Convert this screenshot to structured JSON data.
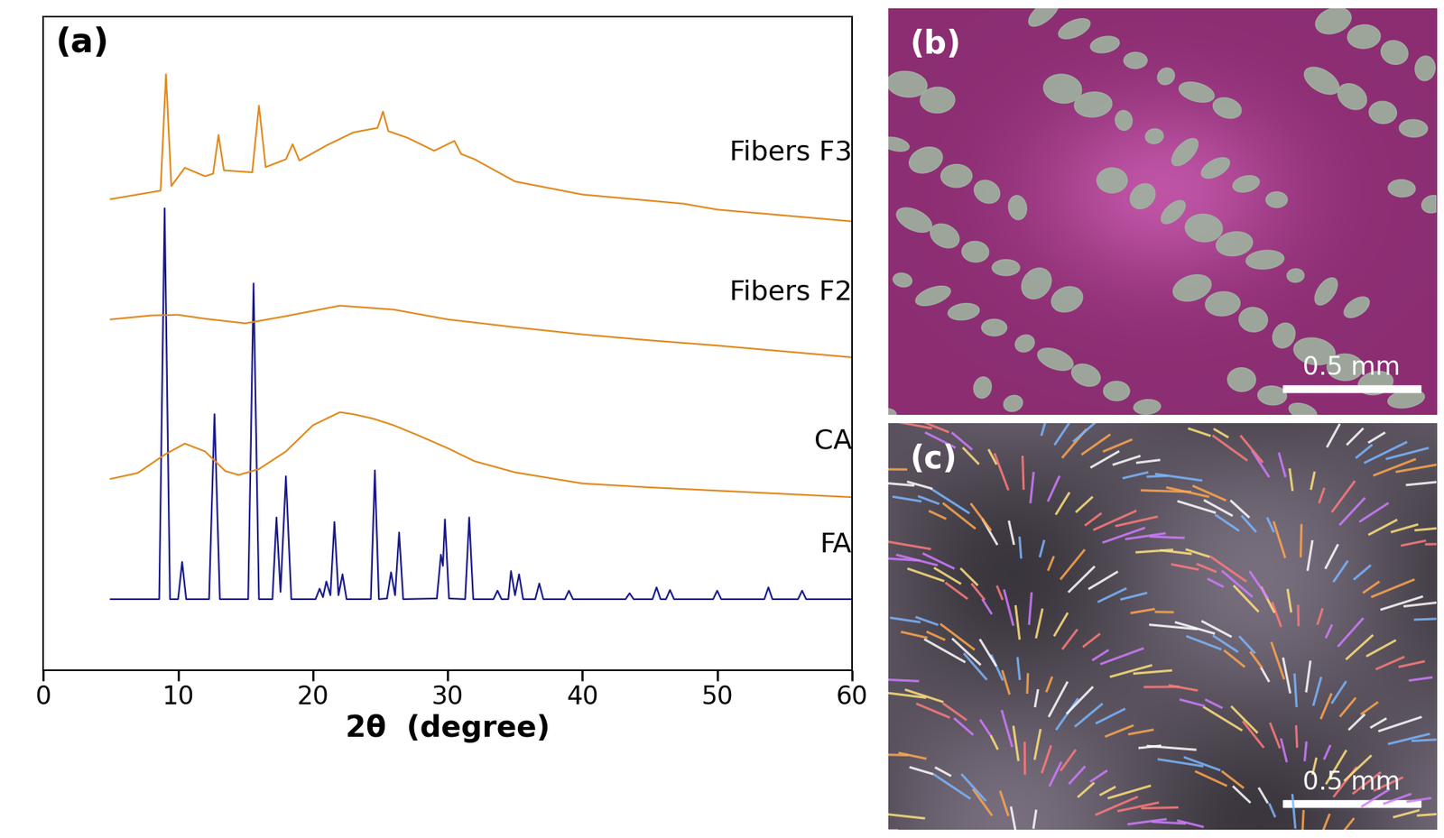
{
  "chart_data": {
    "type": "line",
    "title": "(a)",
    "x_label": "2θ  (degree)",
    "xlim": [
      0,
      60
    ],
    "xticks": [
      0,
      10,
      20,
      30,
      40,
      50,
      60
    ],
    "ylim": [
      0,
      100
    ],
    "tick_labels": "x",
    "series": [
      {
        "name": "FA",
        "color": "#1a1a8c",
        "x": [
          5,
          8.6,
          9.0,
          9.4,
          10.0,
          10.3,
          10.6,
          12.3,
          12.7,
          13.1,
          15.2,
          15.6,
          16.0,
          17.0,
          17.3,
          17.6,
          18.0,
          18.4,
          20.2,
          20.5,
          20.75,
          21.0,
          21.3,
          21.6,
          21.9,
          22.2,
          22.5,
          24.3,
          24.6,
          24.9,
          25.5,
          25.8,
          26.1,
          26.4,
          26.7,
          29.2,
          29.5,
          29.65,
          29.8,
          30.1,
          31.3,
          31.6,
          31.9,
          33.4,
          33.7,
          34.0,
          34.5,
          34.7,
          35.0,
          35.3,
          35.6,
          36.5,
          36.8,
          37.1,
          38.7,
          39.0,
          39.3,
          43.2,
          43.5,
          43.8,
          45.2,
          45.5,
          45.8,
          46.2,
          46.5,
          46.8,
          49.7,
          50.0,
          50.3,
          53.5,
          53.8,
          54.1,
          56.0,
          56.3,
          56.6,
          60
        ],
        "values": [
          10.9,
          10.9,
          70.7,
          10.9,
          10.9,
          16.6,
          10.9,
          10.9,
          39.2,
          10.9,
          10.9,
          59.2,
          10.9,
          10.9,
          23.4,
          12.0,
          29.7,
          10.9,
          10.9,
          12.5,
          11.2,
          13.6,
          11.5,
          22.7,
          11.5,
          14.7,
          10.9,
          10.9,
          30.6,
          10.9,
          11.0,
          15.0,
          11.5,
          21.1,
          10.9,
          11.0,
          17.7,
          16.0,
          23.1,
          11.0,
          10.9,
          23.4,
          10.9,
          10.9,
          12.2,
          10.9,
          10.9,
          15.2,
          11.5,
          14.7,
          10.9,
          10.9,
          13.3,
          10.9,
          10.9,
          12.2,
          10.9,
          10.9,
          11.8,
          10.9,
          10.9,
          12.7,
          10.9,
          10.9,
          12.3,
          10.9,
          10.9,
          12.2,
          10.9,
          10.9,
          12.7,
          10.9,
          10.9,
          12.2,
          10.9,
          10.9
        ]
      },
      {
        "name": "CA",
        "color": "#e08a1e",
        "x": [
          5,
          7,
          9,
          10.5,
          12,
          13.5,
          14.5,
          16,
          18,
          20,
          22,
          23,
          24.5,
          26,
          28,
          30,
          32,
          35,
          40,
          45,
          50,
          55,
          60
        ],
        "values": [
          29.3,
          30.2,
          33.0,
          34.7,
          33.5,
          30.5,
          29.9,
          30.8,
          33.5,
          37.5,
          39.5,
          39.2,
          38.5,
          37.5,
          35.8,
          34.0,
          32.0,
          30.3,
          28.6,
          28.0,
          27.5,
          27.0,
          26.5
        ]
      },
      {
        "name": "Fibers F2",
        "color": "#e08a1e",
        "x": [
          5,
          8,
          10,
          12,
          15,
          18,
          22,
          26,
          30,
          35,
          40,
          45,
          50,
          55,
          60
        ],
        "values": [
          53.7,
          54.3,
          54.4,
          53.8,
          53.1,
          54.2,
          55.8,
          55.2,
          53.7,
          52.5,
          51.4,
          50.5,
          49.7,
          48.8,
          47.9
        ]
      },
      {
        "name": "Fibers F3",
        "color": "#e08a1e",
        "x": [
          5,
          7,
          8.7,
          9.1,
          9.5,
          10.5,
          12,
          12.6,
          13.0,
          13.4,
          15.5,
          16.0,
          16.5,
          18.0,
          18.5,
          19.0,
          21,
          23,
          24.8,
          25.2,
          25.6,
          27,
          29,
          30.5,
          31,
          32,
          35,
          40,
          47.5,
          50,
          55,
          60
        ],
        "values": [
          72.1,
          72.8,
          73.4,
          91.2,
          74.1,
          76.9,
          75.6,
          76.0,
          81.9,
          76.5,
          76.2,
          86.4,
          77.0,
          78.2,
          80.5,
          78.0,
          80.3,
          82.3,
          83.0,
          85.5,
          82.5,
          81.5,
          79.5,
          81.0,
          79.0,
          78.2,
          74.8,
          72.8,
          71.4,
          70.5,
          69.6,
          68.7
        ]
      }
    ]
  },
  "images": [
    {
      "label": "(b)",
      "scale_bar": "0.5 mm"
    },
    {
      "label": "(c)",
      "scale_bar": "0.5 mm"
    }
  ]
}
